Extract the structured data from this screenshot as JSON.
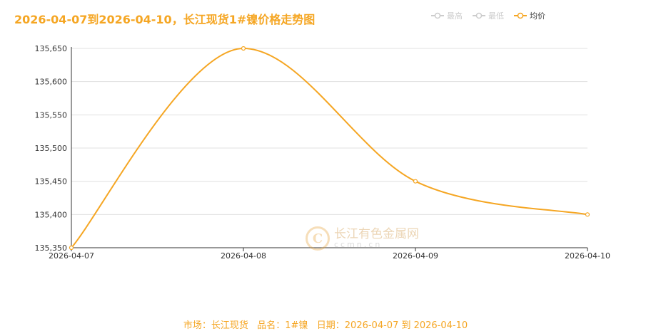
{
  "title": "2026-04-07到2026-04-10，长江现货1#镍价格走势图",
  "legend": [
    {
      "label": "最高",
      "active": false,
      "color": "#cccccc"
    },
    {
      "label": "最低",
      "active": false,
      "color": "#cccccc"
    },
    {
      "label": "均价",
      "active": true,
      "color": "#f5a623"
    }
  ],
  "footer": "市场：长江现货   品名：1#镍   日期：2026-04-07 到 2026-04-10",
  "watermark": {
    "brand": "长江有色金属网",
    "url": "ccmn.cn"
  },
  "colors": {
    "accent": "#f5a623",
    "grid": "#e0e0e0",
    "axis": "#333333"
  },
  "chart_data": {
    "type": "line",
    "title": "2026-04-07到2026-04-10，长江现货1#镍价格走势图",
    "x": [
      "2026-04-07",
      "2026-04-08",
      "2026-04-09",
      "2026-04-10"
    ],
    "series": [
      {
        "name": "均价",
        "values": [
          135350,
          135650,
          135450,
          135400
        ]
      }
    ],
    "yticks": [
      "135,350",
      "135,400",
      "135,450",
      "135,500",
      "135,550",
      "135,600",
      "135,650"
    ],
    "ylim": [
      135350,
      135650
    ],
    "grid": true,
    "smooth": true,
    "legend_position": "top-right"
  }
}
